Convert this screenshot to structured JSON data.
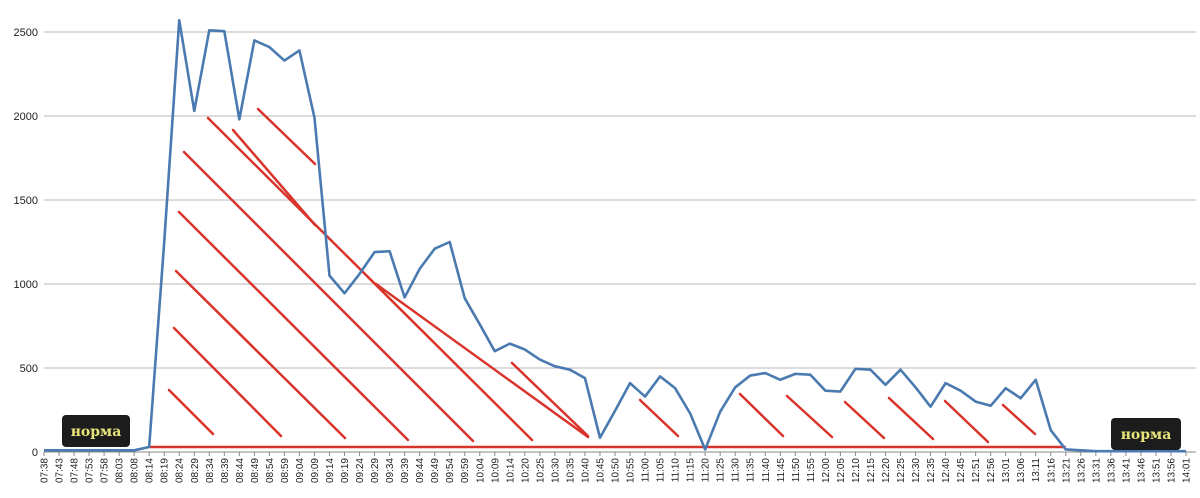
{
  "chart_data": {
    "type": "line",
    "title": "",
    "xlabel": "",
    "ylabel": "",
    "ylim": [
      0,
      2500
    ],
    "y_ticks": [
      "0",
      "500",
      "1000",
      "1500",
      "2000",
      "2500"
    ],
    "grid": true,
    "x": [
      "07:38",
      "07:43",
      "07:48",
      "07:53",
      "07:58",
      "08:03",
      "08:08",
      "08:14",
      "08:19",
      "08:24",
      "08:29",
      "08:34",
      "08:39",
      "08:44",
      "08:49",
      "08:54",
      "08:59",
      "09:04",
      "09:09",
      "09:14",
      "09:19",
      "09:24",
      "09:29",
      "09:34",
      "09:39",
      "09:44",
      "09:49",
      "09:54",
      "09:59",
      "10:04",
      "10:09",
      "10:14",
      "10:20",
      "10:25",
      "10:30",
      "10:35",
      "10:40",
      "10:45",
      "10:50",
      "10:55",
      "11:00",
      "11:05",
      "11:10",
      "11:15",
      "11:20",
      "11:25",
      "11:30",
      "11:35",
      "11:40",
      "11:45",
      "11:50",
      "11:55",
      "12:00",
      "12:05",
      "12:10",
      "12:15",
      "12:20",
      "12:25",
      "12:30",
      "12:35",
      "12:40",
      "12:45",
      "12:51",
      "12:56",
      "13:01",
      "13:06",
      "13:11",
      "13:16",
      "13:21",
      "13:26",
      "13:31",
      "13:36",
      "13:41",
      "13:46",
      "13:51",
      "13:56",
      "14:01"
    ],
    "series": [
      {
        "color": "#4a7ab0",
        "values": [
          10,
          10,
          10,
          10,
          10,
          10,
          10,
          30,
          1250,
          2570,
          2030,
          2510,
          2505,
          1980,
          2450,
          2410,
          2330,
          2390,
          1990,
          1050,
          945,
          1060,
          1190,
          1195,
          920,
          1090,
          1210,
          1250,
          915,
          760,
          600,
          645,
          610,
          550,
          510,
          490,
          440,
          85,
          245,
          410,
          330,
          450,
          380,
          230,
          15,
          240,
          385,
          455,
          470,
          430,
          465,
          460,
          365,
          360,
          495,
          490,
          400,
          490,
          385,
          270,
          410,
          365,
          300,
          275,
          380,
          320,
          430,
          130,
          15,
          10,
          5,
          5,
          5,
          5,
          5,
          5,
          5
        ]
      }
    ],
    "threshold_color": "#d9342b",
    "annotations": [
      {
        "label": "норма",
        "side": "left"
      },
      {
        "label": "норма",
        "side": "right"
      }
    ]
  }
}
